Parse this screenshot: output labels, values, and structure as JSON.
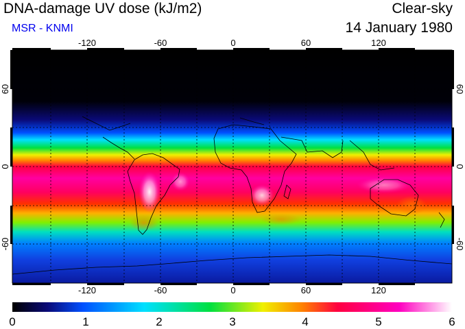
{
  "header": {
    "title": "DNA-damage UV dose (kJ/m2)",
    "source": "MSR - KNMI",
    "condition": "Clear-sky",
    "date": "14 January 1980"
  },
  "map": {
    "longitude_ticks": [
      "-120",
      "-60",
      "0",
      "60",
      "120"
    ],
    "longitude_values": [
      -120,
      -60,
      0,
      60,
      120
    ],
    "latitude_ticks": [
      "60",
      "0",
      "-60"
    ],
    "latitude_values": [
      60,
      0,
      -60
    ],
    "lon_range": [
      -180,
      180
    ],
    "lat_range": [
      -90,
      90
    ],
    "grid": "dotted every 30 degrees"
  },
  "colorbar": {
    "labels": [
      "0",
      "1",
      "2",
      "3",
      "4",
      "5",
      "6"
    ],
    "values": [
      0,
      1,
      2,
      3,
      4,
      5,
      6
    ],
    "range": [
      0,
      6
    ],
    "colors": {
      "black": "#000000",
      "navy": "#0a0a78",
      "blue": "#0050ff",
      "cyan": "#00e0ff",
      "green": "#00e040",
      "yellow": "#f0f000",
      "orange": "#ff8000",
      "red": "#ff0040",
      "magenta": "#ff00c0",
      "white": "#ffffff"
    }
  }
}
